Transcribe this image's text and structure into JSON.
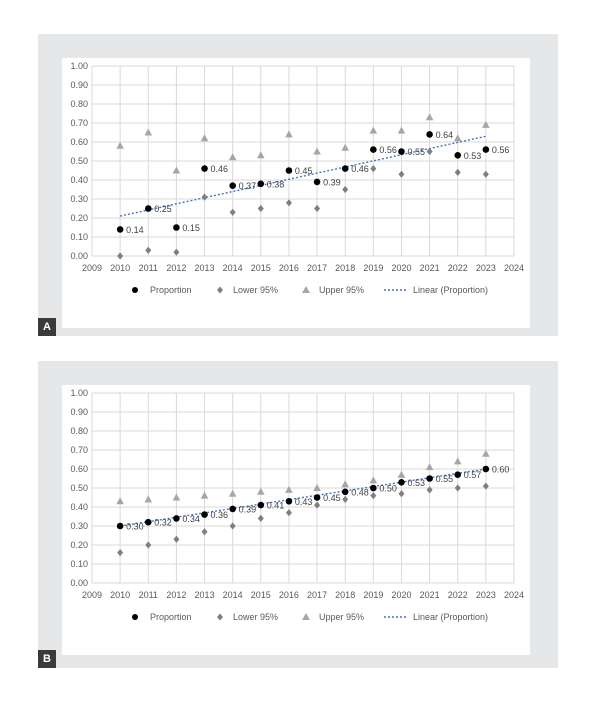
{
  "colors": {
    "panel_bg": "#e6e7e8",
    "grid": "#d9d9d9",
    "proportion": "#000000",
    "lower": "#7f7f7f",
    "upper": "#a6a6a6",
    "trend": "#4472c4",
    "text": "#595959",
    "label_bg": "#3a3a3a"
  },
  "legend": {
    "proportion": "Proportion",
    "lower": "Lower 95%",
    "upper": "Upper 95%",
    "linear": "Linear (Proportion)"
  },
  "chart_data": [
    {
      "type": "scatter",
      "panel_label": "A",
      "title": "",
      "xlabel": "",
      "ylabel": "",
      "xlim": [
        2009,
        2024
      ],
      "ylim": [
        0,
        1
      ],
      "x_ticks": [
        "2009",
        "2010",
        "2011",
        "2012",
        "2013",
        "2014",
        "2015",
        "2016",
        "2017",
        "2018",
        "2019",
        "2020",
        "2021",
        "2022",
        "2023",
        "2024"
      ],
      "y_ticks": [
        "0.00",
        "0.10",
        "0.20",
        "0.30",
        "0.40",
        "0.50",
        "0.60",
        "0.70",
        "0.80",
        "0.90",
        "1.00"
      ],
      "grid": true,
      "legend_position": "bottom",
      "x": [
        2010,
        2011,
        2012,
        2013,
        2014,
        2015,
        2016,
        2017,
        2018,
        2019,
        2020,
        2021,
        2022,
        2023
      ],
      "series": [
        {
          "name": "Proportion",
          "marker": "circle",
          "values": [
            0.14,
            0.25,
            0.15,
            0.46,
            0.37,
            0.38,
            0.45,
            0.39,
            0.46,
            0.56,
            0.55,
            0.64,
            0.53,
            0.56
          ],
          "data_labels": [
            "0.14",
            "0.25",
            "0.15",
            "0.46",
            "0.37",
            "0.38",
            "0.45",
            "0.39",
            "0.46",
            "0.56",
            "0.55",
            "0.64",
            "0.53",
            "0.56"
          ]
        },
        {
          "name": "Lower 95%",
          "marker": "diamond",
          "values": [
            0.0,
            0.03,
            0.02,
            0.31,
            0.23,
            0.25,
            0.28,
            0.25,
            0.35,
            0.46,
            0.43,
            0.55,
            0.44,
            0.43
          ]
        },
        {
          "name": "Upper 95%",
          "marker": "triangle",
          "values": [
            0.58,
            0.65,
            0.45,
            0.62,
            0.52,
            0.53,
            0.64,
            0.55,
            0.57,
            0.66,
            0.66,
            0.73,
            0.62,
            0.69
          ]
        }
      ],
      "trendline": {
        "name": "Linear (Proportion)",
        "from": [
          2010,
          0.21
        ],
        "to": [
          2023,
          0.63
        ]
      }
    },
    {
      "type": "scatter",
      "panel_label": "B",
      "title": "",
      "xlabel": "",
      "ylabel": "",
      "xlim": [
        2009,
        2024
      ],
      "ylim": [
        0,
        1
      ],
      "x_ticks": [
        "2009",
        "2010",
        "2011",
        "2012",
        "2013",
        "2014",
        "2015",
        "2016",
        "2017",
        "2018",
        "2019",
        "2020",
        "2021",
        "2022",
        "2023",
        "2024"
      ],
      "y_ticks": [
        "0.00",
        "0.10",
        "0.20",
        "0.30",
        "0.40",
        "0.50",
        "0.60",
        "0.70",
        "0.80",
        "0.90",
        "1.00"
      ],
      "grid": true,
      "legend_position": "bottom",
      "x": [
        2010,
        2011,
        2012,
        2013,
        2014,
        2015,
        2016,
        2017,
        2018,
        2019,
        2020,
        2021,
        2022,
        2023
      ],
      "series": [
        {
          "name": "Proportion",
          "marker": "circle",
          "values": [
            0.3,
            0.32,
            0.34,
            0.36,
            0.39,
            0.41,
            0.43,
            0.45,
            0.48,
            0.5,
            0.53,
            0.55,
            0.57,
            0.6
          ],
          "data_labels": [
            "0.30",
            "0.32",
            "0.34",
            "0.36",
            "0.39",
            "0.41",
            "0.43",
            "0.45",
            "0.48",
            "0.50",
            "0.53",
            "0.55",
            "0.57",
            "0.60"
          ]
        },
        {
          "name": "Lower 95%",
          "marker": "diamond",
          "values": [
            0.16,
            0.2,
            0.23,
            0.27,
            0.3,
            0.34,
            0.37,
            0.41,
            0.44,
            0.46,
            0.47,
            0.49,
            0.5,
            0.51
          ]
        },
        {
          "name": "Upper 95%",
          "marker": "triangle",
          "values": [
            0.43,
            0.44,
            0.45,
            0.46,
            0.47,
            0.48,
            0.49,
            0.5,
            0.52,
            0.54,
            0.57,
            0.61,
            0.64,
            0.68
          ]
        }
      ],
      "trendline": {
        "name": "Linear (Proportion)",
        "from": [
          2010,
          0.3
        ],
        "to": [
          2023,
          0.6
        ]
      }
    }
  ]
}
